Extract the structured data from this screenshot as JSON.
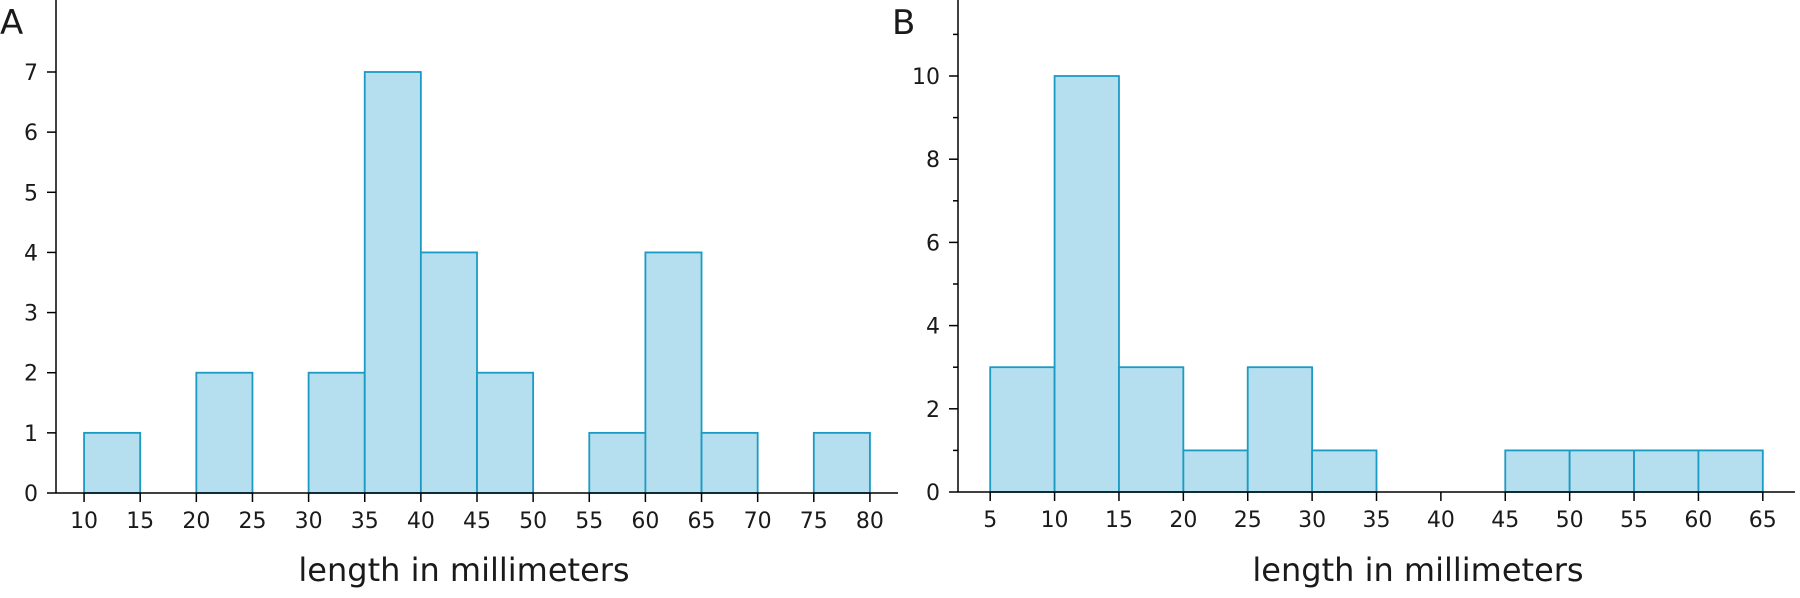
{
  "chart_data": [
    {
      "type": "bar",
      "panel_label": "A",
      "title": "",
      "xlabel": "length in millimeters",
      "ylabel": "",
      "x_ticks": [
        10,
        15,
        20,
        25,
        30,
        35,
        40,
        45,
        50,
        55,
        60,
        65,
        70,
        75,
        80
      ],
      "bins": [
        {
          "start": 10,
          "end": 15,
          "count": 1
        },
        {
          "start": 20,
          "end": 25,
          "count": 2
        },
        {
          "start": 30,
          "end": 35,
          "count": 2
        },
        {
          "start": 35,
          "end": 40,
          "count": 7
        },
        {
          "start": 40,
          "end": 45,
          "count": 4
        },
        {
          "start": 45,
          "end": 50,
          "count": 2
        },
        {
          "start": 55,
          "end": 60,
          "count": 1
        },
        {
          "start": 60,
          "end": 65,
          "count": 4
        },
        {
          "start": 65,
          "end": 70,
          "count": 1
        },
        {
          "start": 75,
          "end": 80,
          "count": 1
        }
      ],
      "xlim": [
        7.5,
        82.5
      ],
      "ylim": [
        0,
        8
      ],
      "y_ticks": [
        0,
        1,
        2,
        3,
        4,
        5,
        6,
        7
      ],
      "grid": false,
      "bar_fill": "#b5dfee",
      "bar_stroke": "#1b9ac4"
    },
    {
      "type": "bar",
      "panel_label": "B",
      "title": "",
      "xlabel": "length in millimeters",
      "ylabel": "",
      "x_ticks": [
        5,
        10,
        15,
        20,
        25,
        30,
        35,
        40,
        45,
        50,
        55,
        60,
        65
      ],
      "bins": [
        {
          "start": 5,
          "end": 10,
          "count": 3
        },
        {
          "start": 10,
          "end": 15,
          "count": 10
        },
        {
          "start": 15,
          "end": 20,
          "count": 3
        },
        {
          "start": 20,
          "end": 25,
          "count": 1
        },
        {
          "start": 25,
          "end": 30,
          "count": 3
        },
        {
          "start": 30,
          "end": 35,
          "count": 1
        },
        {
          "start": 45,
          "end": 50,
          "count": 1
        },
        {
          "start": 50,
          "end": 55,
          "count": 1
        },
        {
          "start": 55,
          "end": 60,
          "count": 1
        },
        {
          "start": 60,
          "end": 65,
          "count": 1
        }
      ],
      "xlim": [
        2.5,
        67.5
      ],
      "ylim": [
        0,
        12
      ],
      "y_ticks": [
        0,
        2,
        4,
        6,
        8,
        10
      ],
      "y_minor_ticks": [
        1,
        3,
        5,
        7,
        9,
        11
      ],
      "grid": false,
      "bar_fill": "#b5dfee",
      "bar_stroke": "#1b9ac4"
    }
  ]
}
